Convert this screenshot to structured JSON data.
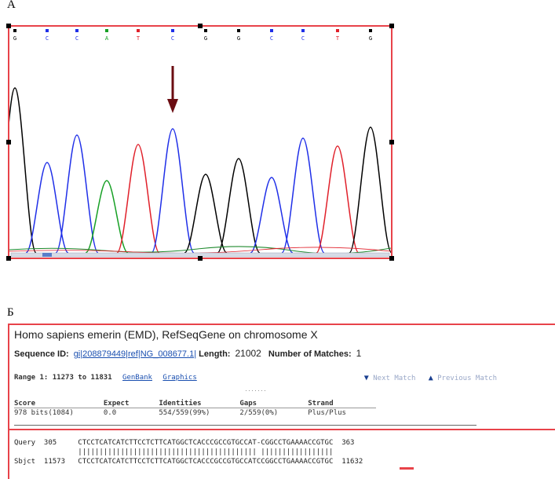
{
  "panel_a": {
    "label": "A",
    "bases": [
      {
        "letter": "G",
        "color": "#000000"
      },
      {
        "letter": "C",
        "color": "#1f2fe8"
      },
      {
        "letter": "C",
        "color": "#1f2fe8"
      },
      {
        "letter": "A",
        "color": "#17a025"
      },
      {
        "letter": "T",
        "color": "#e0202a"
      },
      {
        "letter": "C",
        "color": "#1f2fe8"
      },
      {
        "letter": "G",
        "color": "#000000"
      },
      {
        "letter": "G",
        "color": "#000000"
      },
      {
        "letter": "C",
        "color": "#1f2fe8"
      },
      {
        "letter": "C",
        "color": "#1f2fe8"
      },
      {
        "letter": "T",
        "color": "#e0202a"
      },
      {
        "letter": "G",
        "color": "#000000"
      }
    ],
    "arrow_color": "#6b0d12",
    "border_color": "#e8434a"
  },
  "panel_b": {
    "label": "Б",
    "hit_title": "Homo sapiens emerin (EMD), RefSeqGene on chromosome X",
    "sequence_id_label": "Sequence ID:",
    "sequence_id": "gi|208879449|ref|NG_008677.1|",
    "length_label": "Length:",
    "length_value": "21002",
    "matches_label": "Number of Matches:",
    "matches_value": "1",
    "range": "Range 1: 11273 to 11831",
    "genbank_link": "GenBank",
    "graphics_link": "Graphics",
    "next_match": "Next Match",
    "previous_match": "Previous Match",
    "stats_headers": [
      "Score",
      "Expect",
      "Identities",
      "Gaps",
      "Strand"
    ],
    "stats_values": [
      "978 bits(1084)",
      "0.0",
      "554/559(99%)",
      "2/559(0%)",
      "Plus/Plus"
    ],
    "query_line": "Query  305     CTCCTCATCATCTTCCTCTTCATGGCTCACCCGCCGTGCCAT-CGGCCTGAAAACCGTGC  363",
    "match_line": "               |||||||||||||||||||||||||||||||||||||||||| |||||||||||||||||",
    "sbjct_line": "Sbjct  11573   CTCCTCATCATCTTCCTCTTCATGGCTCACCCGCCGTGCCATCCGGCCTGAAAACCGTGC  11632"
  }
}
